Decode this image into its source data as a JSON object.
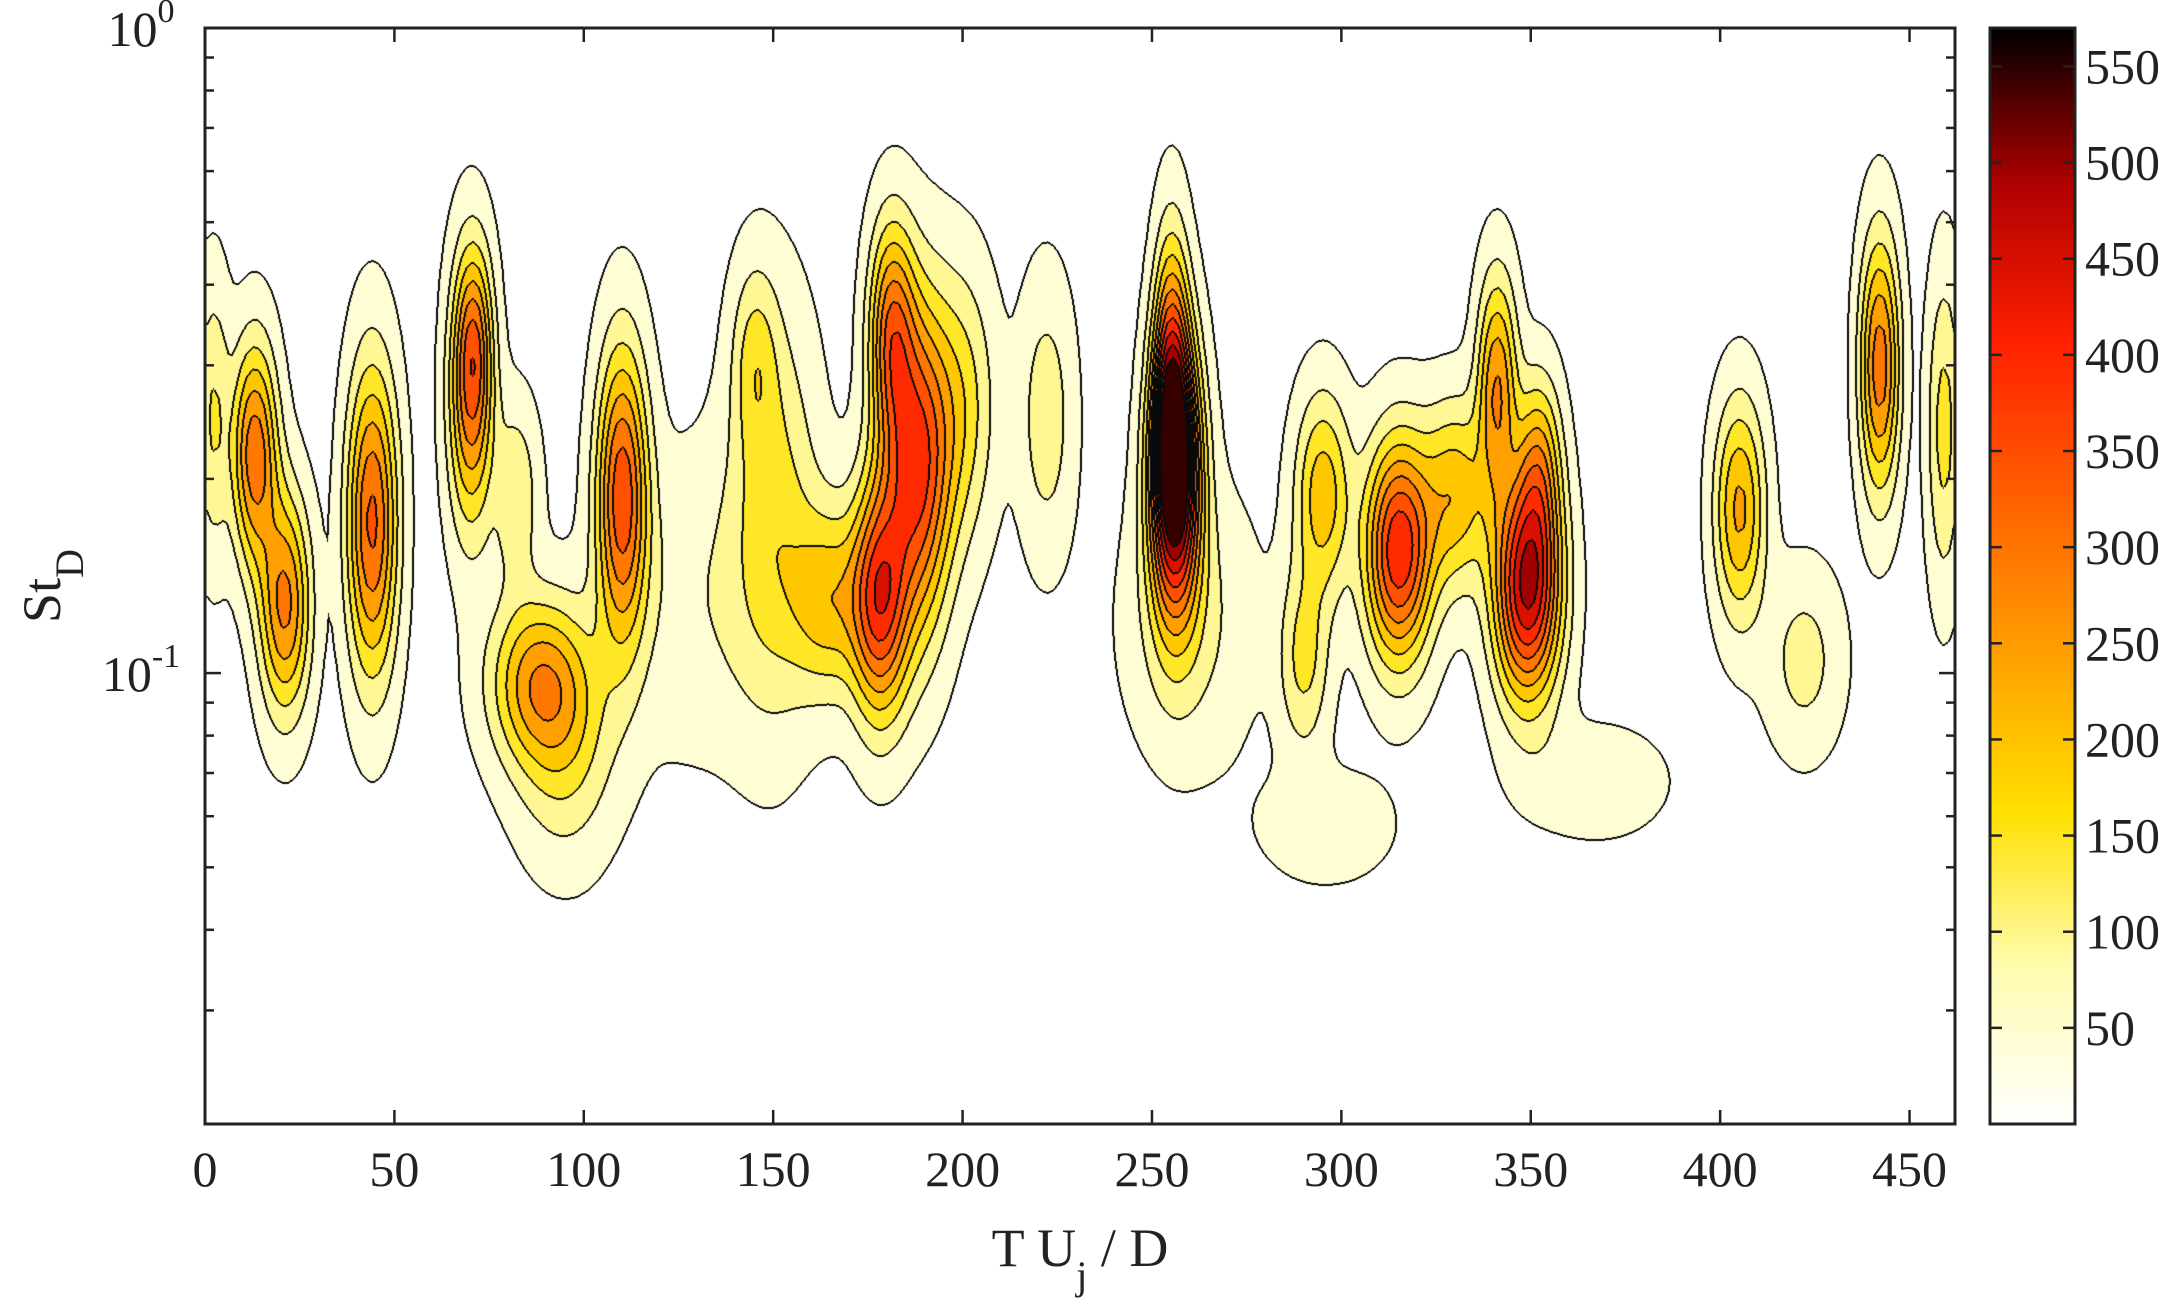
{
  "chart_data": {
    "type": "heatmap",
    "title": "",
    "xlabel": {
      "main": "T U",
      "sub": "j",
      "suffix": " / D"
    },
    "ylabel": {
      "main": "St",
      "sub": "D"
    },
    "x_range": [
      0,
      462
    ],
    "x_ticks": [
      {
        "value": 0,
        "label": "0"
      },
      {
        "value": 50,
        "label": "50"
      },
      {
        "value": 100,
        "label": "100"
      },
      {
        "value": 150,
        "label": "150"
      },
      {
        "value": 200,
        "label": "200"
      },
      {
        "value": 250,
        "label": "250"
      },
      {
        "value": 300,
        "label": "300"
      },
      {
        "value": 350,
        "label": "350"
      },
      {
        "value": 400,
        "label": "400"
      },
      {
        "value": 450,
        "label": "450"
      }
    ],
    "y_scale": "log",
    "y_range": [
      0.02,
      1.0
    ],
    "y_ticks": [
      {
        "value": 0.1,
        "base": "10",
        "exp": "-1"
      },
      {
        "value": 1.0,
        "base": "10",
        "exp": "0"
      }
    ],
    "grid": false,
    "colormap": "hot (reversed)",
    "colors": [
      "#ffffff",
      "#fffcb0",
      "#ffe000",
      "#ffa000",
      "#ff6000",
      "#ff2000",
      "#b00000",
      "#000000"
    ],
    "colorbar": {
      "range": [
        0,
        570
      ],
      "ticks": [
        {
          "value": 50,
          "label": "50"
        },
        {
          "value": 100,
          "label": "100"
        },
        {
          "value": 150,
          "label": "150"
        },
        {
          "value": 200,
          "label": "200"
        },
        {
          "value": 250,
          "label": "250"
        },
        {
          "value": 300,
          "label": "300"
        },
        {
          "value": 350,
          "label": "350"
        },
        {
          "value": 400,
          "label": "400"
        },
        {
          "value": 450,
          "label": "450"
        },
        {
          "value": 500,
          "label": "500"
        },
        {
          "value": 550,
          "label": "550"
        }
      ]
    },
    "contour_levels": [
      20,
      70,
      120,
      170,
      220,
      270,
      320,
      370,
      420,
      470,
      520
    ],
    "blobs": [
      {
        "x": 13,
        "st": 0.22,
        "amp": 300,
        "sx": 4,
        "sy": 0.12
      },
      {
        "x": 21,
        "st": 0.128,
        "amp": 280,
        "sx": 4.5,
        "sy": 0.12
      },
      {
        "x": 44,
        "st": 0.172,
        "amp": 330,
        "sx": 4.5,
        "sy": 0.17
      },
      {
        "x": 70,
        "st": 0.27,
        "amp": 270,
        "sx": 4,
        "sy": 0.15
      },
      {
        "x": 71,
        "st": 0.33,
        "amp": 130,
        "sx": 3,
        "sy": 0.1
      },
      {
        "x": 82,
        "st": 0.19,
        "amp": 110,
        "sx": 4,
        "sy": 0.1
      },
      {
        "x": 88,
        "st": 0.097,
        "amp": 230,
        "sx": 9,
        "sy": 0.09
      },
      {
        "x": 95,
        "st": 0.075,
        "amp": 110,
        "sx": 9,
        "sy": 0.12
      },
      {
        "x": 110,
        "st": 0.19,
        "amp": 340,
        "sx": 4.5,
        "sy": 0.16
      },
      {
        "x": 130,
        "st": 0.13,
        "amp": 60,
        "sx": 18,
        "sy": 0.17
      },
      {
        "x": 150,
        "st": 0.18,
        "amp": 130,
        "sx": 8,
        "sy": 0.22
      },
      {
        "x": 145,
        "st": 0.31,
        "amp": 100,
        "sx": 4,
        "sy": 0.1
      },
      {
        "x": 165,
        "st": 0.13,
        "amp": 180,
        "sx": 7,
        "sy": 0.1
      },
      {
        "x": 178,
        "st": 0.13,
        "amp": 350,
        "sx": 5,
        "sy": 0.13
      },
      {
        "x": 188,
        "st": 0.21,
        "amp": 370,
        "sx": 6,
        "sy": 0.18
      },
      {
        "x": 181,
        "st": 0.34,
        "amp": 260,
        "sx": 4,
        "sy": 0.12
      },
      {
        "x": 200,
        "st": 0.26,
        "amp": 130,
        "sx": 6,
        "sy": 0.15
      },
      {
        "x": 222,
        "st": 0.25,
        "amp": 100,
        "sx": 5,
        "sy": 0.15
      },
      {
        "x": 256,
        "st": 0.205,
        "amp": 570,
        "sx": 4.5,
        "sy": 0.15
      },
      {
        "x": 255,
        "st": 0.3,
        "amp": 240,
        "sx": 3,
        "sy": 0.15
      },
      {
        "x": 260,
        "st": 0.12,
        "amp": 80,
        "sx": 12,
        "sy": 0.15
      },
      {
        "x": 290,
        "st": 0.105,
        "amp": 130,
        "sx": 4.5,
        "sy": 0.1
      },
      {
        "x": 295,
        "st": 0.19,
        "amp": 200,
        "sx": 5,
        "sy": 0.11
      },
      {
        "x": 315,
        "st": 0.155,
        "amp": 410,
        "sx": 6,
        "sy": 0.12
      },
      {
        "x": 330,
        "st": 0.19,
        "amp": 200,
        "sx": 6,
        "sy": 0.1
      },
      {
        "x": 341,
        "st": 0.28,
        "amp": 260,
        "sx": 3.5,
        "sy": 0.12
      },
      {
        "x": 349,
        "st": 0.135,
        "amp": 470,
        "sx": 6,
        "sy": 0.12
      },
      {
        "x": 352,
        "st": 0.21,
        "amp": 200,
        "sx": 4,
        "sy": 0.1
      },
      {
        "x": 296,
        "st": 0.058,
        "amp": 60,
        "sx": 12,
        "sy": 0.06
      },
      {
        "x": 367,
        "st": 0.068,
        "amp": 60,
        "sx": 13,
        "sy": 0.06
      },
      {
        "x": 405,
        "st": 0.18,
        "amp": 230,
        "sx": 4.5,
        "sy": 0.12
      },
      {
        "x": 422,
        "st": 0.105,
        "amp": 90,
        "sx": 7,
        "sy": 0.1
      },
      {
        "x": 442,
        "st": 0.3,
        "amp": 300,
        "sx": 3.5,
        "sy": 0.14
      },
      {
        "x": 459,
        "st": 0.24,
        "amp": 140,
        "sx": 3,
        "sy": 0.17
      },
      {
        "x": 2,
        "st": 0.25,
        "amp": 120,
        "sx": 3,
        "sy": 0.15
      }
    ]
  }
}
